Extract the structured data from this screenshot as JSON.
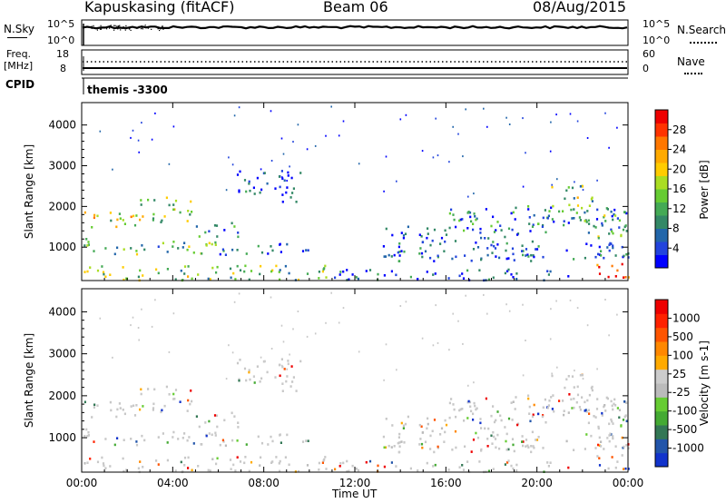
{
  "header": {
    "title": "Kapuskasing (fitACF)",
    "beam": "Beam 06",
    "date": "08/Aug/2015"
  },
  "strip_noise": {
    "left_label": "N.Sky",
    "left_ticks": [
      "10^5",
      "10^0"
    ],
    "right_ticks": [
      "10^5",
      "10^0"
    ],
    "right_label": "N.Search"
  },
  "strip_freq": {
    "left_label": "Freq.",
    "left_unit": "[MHz]",
    "left_ticks": [
      "18",
      "8"
    ],
    "right_ticks": [
      "60",
      "0"
    ],
    "right_label": "Nave"
  },
  "cpid": {
    "label": "CPID",
    "value": "themis -3300"
  },
  "xaxis": {
    "ticks": [
      "00:00",
      "04:00",
      "08:00",
      "12:00",
      "16:00",
      "20:00",
      "00:00"
    ],
    "label": "Time UT"
  },
  "chart_data": [
    {
      "type": "heatmap",
      "name": "power",
      "ylabel": "Slant Range [km]",
      "yticks": [
        1000,
        2000,
        3000,
        4000
      ],
      "xlim_hours": [
        0,
        24
      ],
      "ylim_km": [
        180,
        4550
      ],
      "colorbar": {
        "label": "Power [dB]",
        "ticks": [
          "28",
          "24",
          "20",
          "16",
          "12",
          "8",
          "4"
        ],
        "colors": [
          "#0000ff",
          "#2244dd",
          "#2266aa",
          "#338866",
          "#44aa55",
          "#66cc33",
          "#aadd22",
          "#ffcc00",
          "#ffaa00",
          "#ff7700",
          "#ff3300",
          "#ee0000"
        ]
      },
      "echo_bands": [
        {
          "t0": 0.0,
          "t1": 2.6,
          "r0": 1450,
          "r1": 1850,
          "level": 0.55
        },
        {
          "t0": 2.5,
          "t1": 4.8,
          "r0": 1600,
          "r1": 2250,
          "level": 0.5
        },
        {
          "t0": 5.0,
          "t1": 6.9,
          "r0": 1200,
          "r1": 1600,
          "level": 0.3
        },
        {
          "t0": 6.8,
          "t1": 9.6,
          "r0": 2100,
          "r1": 2900,
          "level": 0.1
        },
        {
          "t0": 0.0,
          "t1": 1.0,
          "r0": 850,
          "r1": 1200,
          "level": 0.3
        },
        {
          "t0": 1.0,
          "t1": 6.0,
          "r0": 800,
          "r1": 1150,
          "level": 0.4
        },
        {
          "t0": 6.0,
          "t1": 10.0,
          "r0": 800,
          "r1": 1100,
          "level": 0.2
        },
        {
          "t0": 0.0,
          "t1": 11.0,
          "r0": 180,
          "r1": 550,
          "level": 0.45
        },
        {
          "t0": 11.0,
          "t1": 21.5,
          "r0": 180,
          "r1": 450,
          "level": 0.15
        },
        {
          "t0": 13.2,
          "t1": 19.8,
          "r0": 650,
          "r1": 1500,
          "level": 0.15
        },
        {
          "t0": 16.0,
          "t1": 24.0,
          "r0": 1350,
          "r1": 2000,
          "level": 0.25
        },
        {
          "t0": 20.5,
          "t1": 22.4,
          "r0": 1700,
          "r1": 2500,
          "level": 0.45
        },
        {
          "t0": 22.0,
          "t1": 24.0,
          "r0": 1200,
          "r1": 1800,
          "level": 0.4
        },
        {
          "t0": 22.6,
          "t1": 24.0,
          "r0": 200,
          "r1": 700,
          "level": 0.85
        },
        {
          "t0": 17.8,
          "t1": 24.0,
          "r0": 700,
          "r1": 1100,
          "level": 0.15
        }
      ]
    },
    {
      "type": "heatmap",
      "name": "velocity",
      "ylabel": "Slant Range [km]",
      "yticks": [
        1000,
        2000,
        3000,
        4000
      ],
      "xlim_hours": [
        0,
        24
      ],
      "ylim_km": [
        180,
        4550
      ],
      "colorbar": {
        "label": "Velocity [m s-1]",
        "ticks": [
          "1000",
          "500",
          "100",
          "25",
          "-25",
          "-100",
          "-500",
          "-1000"
        ],
        "colors": [
          "#1133cc",
          "#2255aa",
          "#337755",
          "#44aa33",
          "#66cc33",
          "#bbbbbb",
          "#cccccc",
          "#ffaa00",
          "#ff8800",
          "#ff5500",
          "#ff2200",
          "#ee0000"
        ]
      }
    }
  ],
  "colors": {
    "frame": "#000000",
    "ground_scatter": "#c8c8c8"
  }
}
